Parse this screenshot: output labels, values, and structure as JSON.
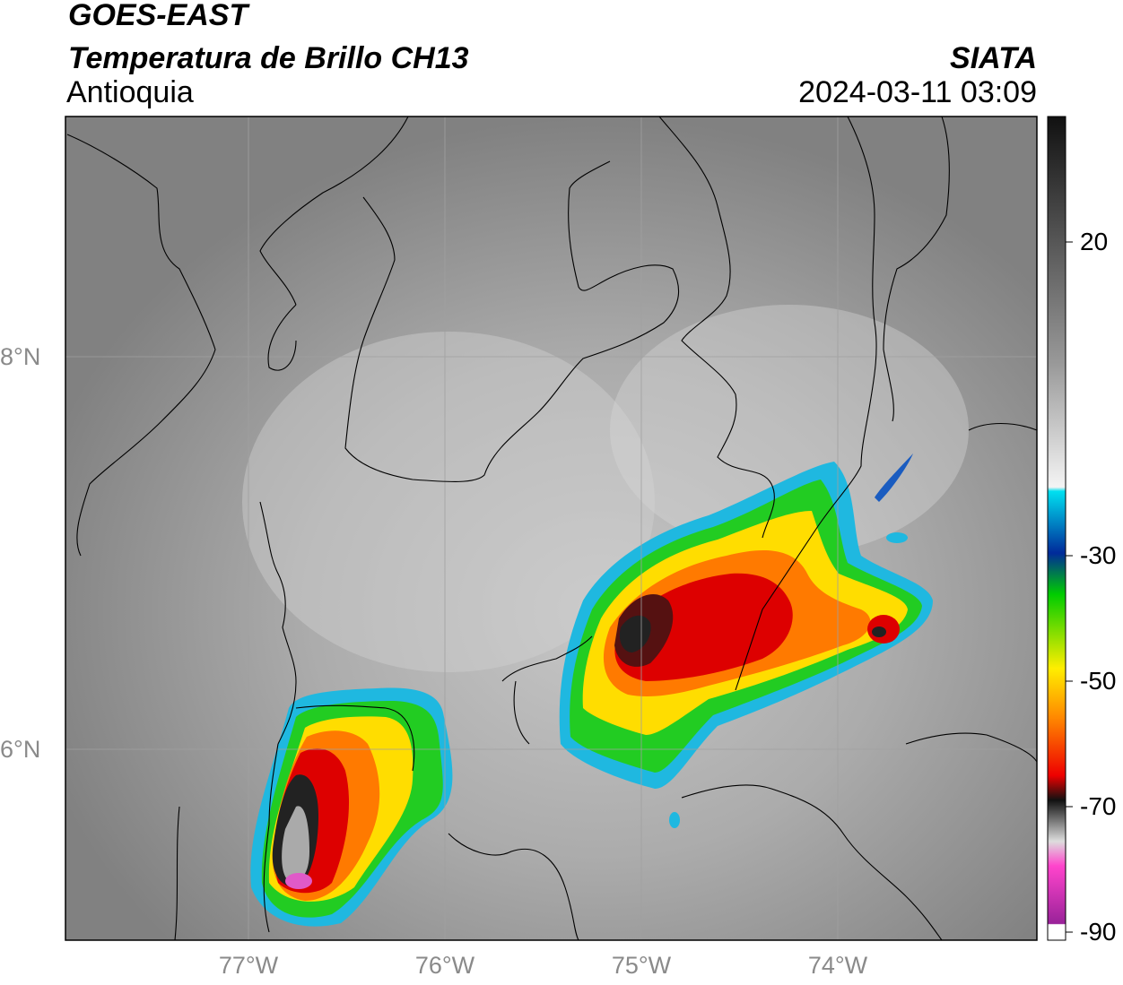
{
  "header": {
    "satellite": "GOES-EAST",
    "product": "Temperatura de Brillo CH13",
    "region": "Antioquia",
    "agency": "SIATA",
    "datetime": "2024-03-11 03:09"
  },
  "map": {
    "lon_ticks": [
      "77°W",
      "76°W",
      "75°W",
      "74°W"
    ],
    "lat_ticks": [
      "8°N",
      "6°N"
    ],
    "background_color": "#8c8c8c",
    "border_color": "#000000"
  },
  "colorbar": {
    "ticks": [
      "20",
      "-30",
      "-50",
      "-70",
      "-90"
    ],
    "stops": [
      "#111111",
      "#888888",
      "#ffffff",
      "#00e0f0",
      "#002a9a",
      "#00cc00",
      "#ffee00",
      "#ff8800",
      "#ee0000",
      "#111111",
      "#dddddd",
      "#ff44cc",
      "#992299",
      "#ffffff"
    ]
  }
}
